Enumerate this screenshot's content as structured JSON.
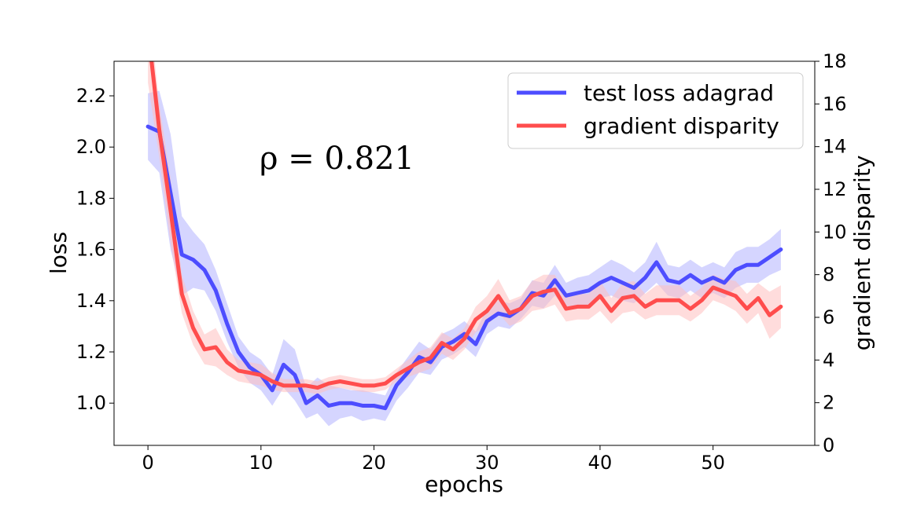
{
  "chart_data": {
    "type": "line",
    "xlabel": "epochs",
    "ylabel": "loss",
    "y2label": "gradient disparity",
    "annotation": "ρ = 0.821",
    "xlim": [
      -3,
      59
    ],
    "ylim": [
      0.835,
      2.335
    ],
    "y2lim": [
      0,
      18
    ],
    "xticks": [
      0,
      10,
      20,
      30,
      40,
      50
    ],
    "yticks": [
      1.0,
      1.2,
      1.4,
      1.6,
      1.8,
      2.0,
      2.2
    ],
    "y2ticks": [
      0,
      2,
      4,
      6,
      8,
      10,
      12,
      14,
      16,
      18
    ],
    "legend_position": "top-right",
    "x": [
      0,
      1,
      2,
      3,
      4,
      5,
      6,
      7,
      8,
      9,
      10,
      11,
      12,
      13,
      14,
      15,
      16,
      17,
      18,
      19,
      20,
      21,
      22,
      23,
      24,
      25,
      26,
      27,
      28,
      29,
      30,
      31,
      32,
      33,
      34,
      35,
      36,
      37,
      38,
      39,
      40,
      41,
      42,
      43,
      44,
      45,
      46,
      47,
      48,
      49,
      50,
      51,
      52,
      53,
      54,
      55,
      56
    ],
    "series": [
      {
        "name": "test loss adagrad",
        "axis": "left",
        "color": "#4d4dff",
        "band_color": "#b3b3ff",
        "values": [
          2.08,
          2.06,
          1.82,
          1.58,
          1.56,
          1.52,
          1.44,
          1.31,
          1.2,
          1.14,
          1.11,
          1.05,
          1.15,
          1.11,
          1.0,
          1.03,
          0.99,
          1.0,
          1.0,
          0.99,
          0.99,
          0.98,
          1.07,
          1.12,
          1.18,
          1.16,
          1.22,
          1.24,
          1.27,
          1.23,
          1.32,
          1.35,
          1.34,
          1.37,
          1.43,
          1.42,
          1.48,
          1.42,
          1.43,
          1.44,
          1.47,
          1.49,
          1.47,
          1.45,
          1.49,
          1.55,
          1.48,
          1.47,
          1.5,
          1.47,
          1.49,
          1.47,
          1.52,
          1.54,
          1.54,
          1.57,
          1.6
        ],
        "lower": [
          1.95,
          1.9,
          1.6,
          1.42,
          1.45,
          1.44,
          1.36,
          1.24,
          1.14,
          1.08,
          1.05,
          0.99,
          1.06,
          1.01,
          0.94,
          0.96,
          0.91,
          0.94,
          0.95,
          0.93,
          0.94,
          0.93,
          1.01,
          1.06,
          1.12,
          1.11,
          1.17,
          1.19,
          1.22,
          1.18,
          1.27,
          1.3,
          1.29,
          1.33,
          1.38,
          1.37,
          1.42,
          1.37,
          1.37,
          1.38,
          1.41,
          1.42,
          1.4,
          1.39,
          1.43,
          1.47,
          1.42,
          1.41,
          1.44,
          1.41,
          1.43,
          1.41,
          1.45,
          1.47,
          1.47,
          1.5,
          1.52
        ],
        "upper": [
          2.21,
          2.22,
          2.05,
          1.73,
          1.67,
          1.62,
          1.52,
          1.39,
          1.26,
          1.2,
          1.17,
          1.11,
          1.25,
          1.21,
          1.06,
          1.1,
          1.07,
          1.06,
          1.05,
          1.05,
          1.04,
          1.03,
          1.12,
          1.18,
          1.24,
          1.21,
          1.27,
          1.29,
          1.32,
          1.28,
          1.37,
          1.4,
          1.39,
          1.41,
          1.48,
          1.47,
          1.54,
          1.47,
          1.49,
          1.5,
          1.53,
          1.56,
          1.54,
          1.51,
          1.55,
          1.63,
          1.54,
          1.53,
          1.56,
          1.53,
          1.55,
          1.53,
          1.59,
          1.61,
          1.61,
          1.64,
          1.68
        ]
      },
      {
        "name": "gradient disparity",
        "axis": "right",
        "color": "#ff4d4d",
        "band_color": "#ffc0c0",
        "values": [
          19.5,
          14.8,
          11.0,
          7.1,
          5.5,
          4.5,
          4.6,
          3.9,
          3.5,
          3.4,
          3.3,
          3.0,
          2.8,
          2.8,
          2.8,
          2.7,
          2.9,
          3.0,
          2.9,
          2.8,
          2.8,
          2.9,
          3.3,
          3.6,
          3.9,
          4.1,
          4.8,
          4.5,
          5.0,
          5.9,
          6.3,
          7.0,
          6.2,
          6.4,
          7.0,
          7.2,
          7.3,
          6.4,
          6.5,
          6.5,
          7.0,
          6.3,
          6.9,
          7.0,
          6.5,
          6.8,
          6.8,
          6.8,
          6.4,
          6.8,
          7.4,
          7.2,
          7.0,
          6.4,
          6.9,
          6.1,
          6.5
        ],
        "lower": [
          17.0,
          13.5,
          9.5,
          6.2,
          4.7,
          3.8,
          3.7,
          3.3,
          3.0,
          2.9,
          2.8,
          2.6,
          2.5,
          2.5,
          2.5,
          2.4,
          2.6,
          2.7,
          2.6,
          2.5,
          2.5,
          2.6,
          3.0,
          3.2,
          3.4,
          3.6,
          4.3,
          4.0,
          4.5,
          5.3,
          5.6,
          6.2,
          5.6,
          5.8,
          6.3,
          6.4,
          6.6,
          5.8,
          5.9,
          5.9,
          6.3,
          5.7,
          6.2,
          6.3,
          5.9,
          6.1,
          6.1,
          6.1,
          5.8,
          6.2,
          6.8,
          6.6,
          6.3,
          5.7,
          6.2,
          5.0,
          5.5
        ],
        "upper": [
          21.0,
          16.0,
          12.5,
          8.0,
          6.3,
          5.2,
          5.5,
          4.5,
          4.0,
          3.9,
          3.8,
          3.4,
          3.1,
          3.1,
          3.1,
          3.0,
          3.2,
          3.3,
          3.2,
          3.1,
          3.1,
          3.2,
          3.6,
          4.0,
          4.4,
          4.6,
          5.3,
          5.0,
          5.5,
          6.5,
          7.0,
          7.8,
          6.8,
          7.0,
          7.7,
          8.0,
          8.0,
          7.0,
          7.1,
          7.1,
          7.7,
          6.9,
          7.6,
          7.7,
          7.1,
          7.5,
          7.5,
          7.5,
          7.0,
          7.4,
          8.0,
          7.8,
          7.7,
          7.1,
          7.6,
          7.2,
          7.5
        ]
      }
    ]
  }
}
